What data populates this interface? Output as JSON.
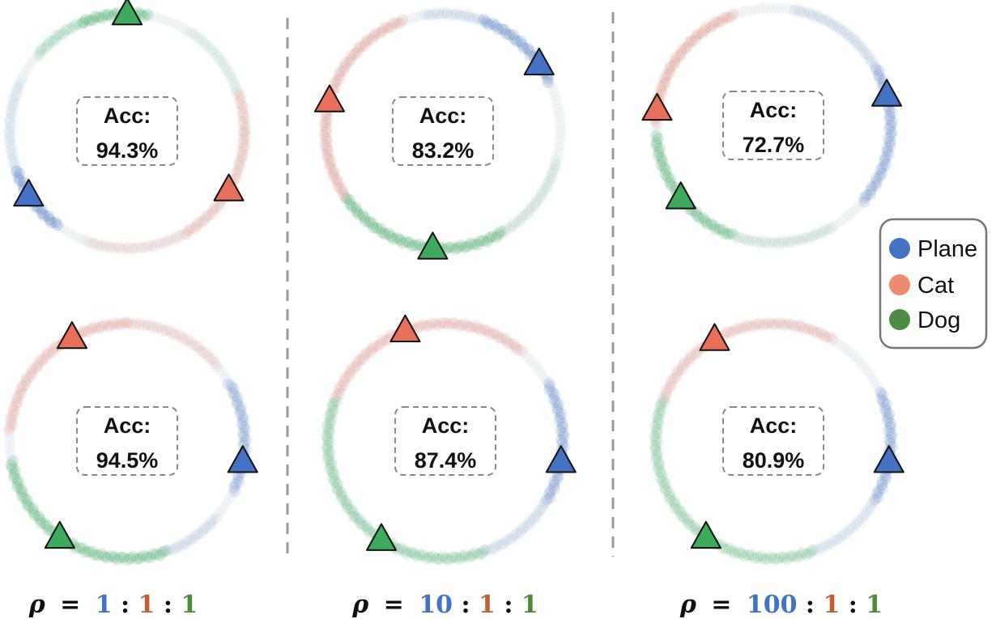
{
  "colors": {
    "plane": "#4472C4",
    "cat": "#E8705A",
    "dog": "#3DAA5C",
    "rho_plane": "#4472C4",
    "rho_cat": "#C0603A",
    "rho_dog": "#4E8A3A",
    "separator": "#9a9a9a",
    "box_border": "#888888"
  },
  "legend": {
    "items": [
      {
        "label": "Plane",
        "color": "#4472C4"
      },
      {
        "label": "Cat",
        "color": "#F08A6E"
      },
      {
        "label": "Dog",
        "color": "#4E8B45"
      }
    ]
  },
  "panels": [
    {
      "acc_label": "Acc:",
      "acc_value": "94.3%",
      "proto_angles": {
        "plane": 213,
        "cat": 330,
        "dog": 90
      },
      "arcs": [
        {
          "cls": "dog",
          "start": 80,
          "end": 112,
          "strength": 0.85
        },
        {
          "cls": "dog",
          "start": 112,
          "end": 140,
          "strength": 0.4
        },
        {
          "cls": "cat",
          "start": 0,
          "end": 20,
          "strength": 0.35
        },
        {
          "cls": "cat",
          "start": 300,
          "end": 360,
          "strength": 0.4
        },
        {
          "cls": "cat",
          "start": 250,
          "end": 300,
          "strength": 0.2
        },
        {
          "cls": "plane",
          "start": 200,
          "end": 235,
          "strength": 0.8
        },
        {
          "cls": "plane",
          "start": 155,
          "end": 200,
          "strength": 0.15
        },
        {
          "cls": "dog",
          "start": 20,
          "end": 60,
          "strength": 0.12
        }
      ]
    },
    {
      "acc_label": "Acc:",
      "acc_value": "83.2%",
      "proto_angles": {
        "plane": 35,
        "cat": 165,
        "dog": 265
      },
      "arcs": [
        {
          "cls": "plane",
          "start": 25,
          "end": 70,
          "strength": 0.75
        },
        {
          "cls": "plane",
          "start": 70,
          "end": 100,
          "strength": 0.2
        },
        {
          "cls": "cat",
          "start": 110,
          "end": 215,
          "strength": 0.5
        },
        {
          "cls": "dog",
          "start": 215,
          "end": 300,
          "strength": 0.8
        },
        {
          "cls": "dog",
          "start": 300,
          "end": 345,
          "strength": 0.2
        }
      ]
    },
    {
      "acc_label": "Acc:",
      "acc_value": "72.7%",
      "proto_angles": {
        "plane": 15,
        "cat": 172,
        "dog": 218
      },
      "arcs": [
        {
          "cls": "plane",
          "start": -40,
          "end": 30,
          "strength": 0.6
        },
        {
          "cls": "plane",
          "start": 30,
          "end": 80,
          "strength": 0.2
        },
        {
          "cls": "cat",
          "start": 110,
          "end": 180,
          "strength": 0.55
        },
        {
          "cls": "dog",
          "start": 185,
          "end": 250,
          "strength": 0.75
        },
        {
          "cls": "dog",
          "start": 250,
          "end": 300,
          "strength": 0.2
        }
      ]
    },
    {
      "acc_label": "Acc:",
      "acc_value": "94.5%",
      "proto_angles": {
        "plane": 350,
        "cat": 118,
        "dog": 235
      },
      "arcs": [
        {
          "cls": "plane",
          "start": -25,
          "end": 30,
          "strength": 0.55
        },
        {
          "cls": "cat",
          "start": 90,
          "end": 175,
          "strength": 0.45
        },
        {
          "cls": "dog",
          "start": 190,
          "end": 290,
          "strength": 0.75
        },
        {
          "cls": "plane",
          "start": 290,
          "end": 320,
          "strength": 0.2
        },
        {
          "cls": "cat",
          "start": 40,
          "end": 90,
          "strength": 0.25
        }
      ]
    },
    {
      "acc_label": "Acc:",
      "acc_value": "87.4%",
      "proto_angles": {
        "plane": 350,
        "cat": 110,
        "dog": 237
      },
      "arcs": [
        {
          "cls": "plane",
          "start": -30,
          "end": 30,
          "strength": 0.6
        },
        {
          "cls": "cat",
          "start": 50,
          "end": 160,
          "strength": 0.45
        },
        {
          "cls": "dog",
          "start": 160,
          "end": 290,
          "strength": 0.55
        },
        {
          "cls": "plane",
          "start": 290,
          "end": 330,
          "strength": 0.2
        }
      ]
    },
    {
      "acc_label": "Acc:",
      "acc_value": "80.9%",
      "proto_angles": {
        "plane": 350,
        "cat": 120,
        "dog": 235
      },
      "arcs": [
        {
          "cls": "plane",
          "start": -30,
          "end": 25,
          "strength": 0.6
        },
        {
          "cls": "cat",
          "start": 60,
          "end": 160,
          "strength": 0.4
        },
        {
          "cls": "dog",
          "start": 160,
          "end": 290,
          "strength": 0.5
        },
        {
          "cls": "plane",
          "start": 290,
          "end": 330,
          "strength": 0.15
        }
      ]
    }
  ],
  "ratios": [
    {
      "rho": "ρ",
      "eq": "=",
      "plane": "1",
      "sep1": ":",
      "cat": "1",
      "sep2": ":",
      "dog": "1"
    },
    {
      "rho": "ρ",
      "eq": "=",
      "plane": "10",
      "sep1": ":",
      "cat": "1",
      "sep2": ":",
      "dog": "1"
    },
    {
      "rho": "ρ",
      "eq": "=",
      "plane": "100",
      "sep1": ":",
      "cat": "1",
      "sep2": ":",
      "dog": "1"
    }
  ]
}
